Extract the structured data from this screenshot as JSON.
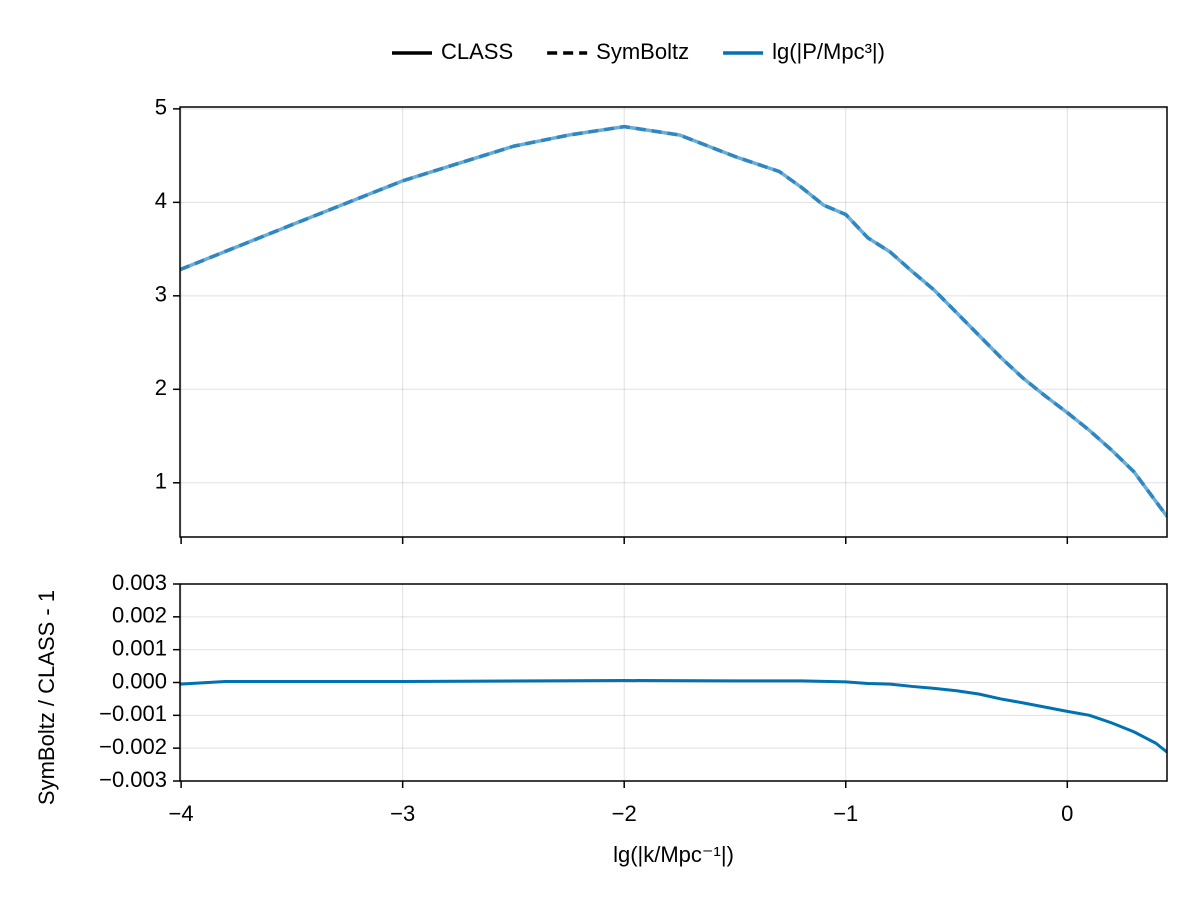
{
  "chart_data": [
    {
      "type": "line",
      "x": [
        -4.005,
        -3.5,
        -3,
        -2.5,
        -2.25,
        -2,
        -1.75,
        -1.5,
        -1.3,
        -1.2,
        -1.1,
        -1,
        -0.9,
        -0.8,
        -0.7,
        -0.6,
        -0.5,
        -0.4,
        -0.3,
        -0.2,
        -0.1,
        0,
        0.1,
        0.2,
        0.3,
        0.45
      ],
      "series": [
        {
          "name": "CLASS",
          "color": "#6aaed6",
          "legend_color": "#000000",
          "dash": false,
          "values": [
            3.28,
            3.76,
            4.23,
            4.6,
            4.72,
            4.81,
            4.72,
            4.49,
            4.33,
            4.16,
            3.97,
            3.87,
            3.62,
            3.47,
            3.26,
            3.06,
            2.82,
            2.58,
            2.34,
            2.12,
            1.93,
            1.75,
            1.56,
            1.35,
            1.12,
            0.64
          ]
        },
        {
          "name": "SymBoltz",
          "color": "#2f86c0",
          "legend_color": "#000000",
          "dash": true,
          "values": [
            3.28,
            3.76,
            4.23,
            4.6,
            4.72,
            4.81,
            4.72,
            4.49,
            4.33,
            4.16,
            3.97,
            3.87,
            3.62,
            3.47,
            3.26,
            3.06,
            2.82,
            2.58,
            2.34,
            2.12,
            1.93,
            1.75,
            1.56,
            1.35,
            1.12,
            0.64
          ]
        }
      ],
      "quantity": {
        "label": "lg(|P/Mpc³|)",
        "color": "#0072b2"
      },
      "xlim": [
        -4.005,
        0.45
      ],
      "xticks": [
        -4,
        -3,
        -2,
        -1,
        0
      ],
      "ylim": [
        0.42,
        5.02
      ],
      "yticks": [
        1,
        2,
        3,
        4,
        5
      ],
      "grid": true
    },
    {
      "type": "line",
      "x": [
        -4.005,
        -3.8,
        -3,
        -2,
        -1.5,
        -1.2,
        -1,
        -0.9,
        -0.8,
        -0.7,
        -0.6,
        -0.5,
        -0.4,
        -0.3,
        -0.2,
        -0.1,
        0,
        0.1,
        0.2,
        0.3,
        0.4,
        0.45
      ],
      "values": [
        -5e-05,
        3e-05,
        3e-05,
        6e-05,
        5e-05,
        5e-05,
        2e-05,
        -3e-05,
        -5e-05,
        -0.00012,
        -0.00018,
        -0.00025,
        -0.00035,
        -0.0005,
        -0.00062,
        -0.00075,
        -0.00088,
        -0.001,
        -0.00123,
        -0.0015,
        -0.00185,
        -0.00212
      ],
      "color": "#0072b2",
      "xlabel": "lg(|k/Mpc⁻¹|)",
      "ylabel": "SymBoltz / CLASS - 1",
      "xlim": [
        -4.005,
        0.45
      ],
      "xticks": [
        {
          "value": -4,
          "label": "−4"
        },
        {
          "value": -3,
          "label": "−3"
        },
        {
          "value": -2,
          "label": "−2"
        },
        {
          "value": -1,
          "label": "−1"
        },
        0
      ],
      "ylim": [
        -0.003,
        0.003
      ],
      "yticks": [
        {
          "value": -0.003,
          "label": "−0.003"
        },
        {
          "value": -0.002,
          "label": "−0.002"
        },
        {
          "value": -0.001,
          "label": "−0.001"
        },
        {
          "value": 0,
          "label": "0.000"
        },
        0.001,
        0.002,
        0.003
      ],
      "grid": true
    }
  ]
}
